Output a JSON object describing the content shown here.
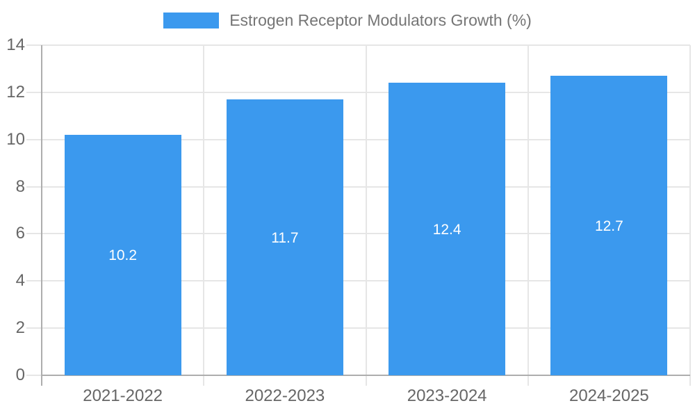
{
  "chart_data": {
    "type": "bar",
    "title": "Estrogen Receptor Modulators Growth (%)",
    "categories": [
      "2021-2022",
      "2022-2023",
      "2023-2024",
      "2024-2025"
    ],
    "values": [
      10.2,
      11.7,
      12.4,
      12.7
    ],
    "xlabel": "",
    "ylabel": "",
    "ylim": [
      0,
      14
    ],
    "yticks": [
      0,
      2,
      4,
      6,
      8,
      10,
      12,
      14
    ],
    "grid": true,
    "legend_position": "top-center",
    "colors": {
      "bar": "#3b99ee",
      "bar_label": "#ffffff",
      "gridline": "#e6e6e6",
      "axis_line": "#adadad",
      "tick_label": "#666666",
      "legend_text": "#757575"
    }
  }
}
